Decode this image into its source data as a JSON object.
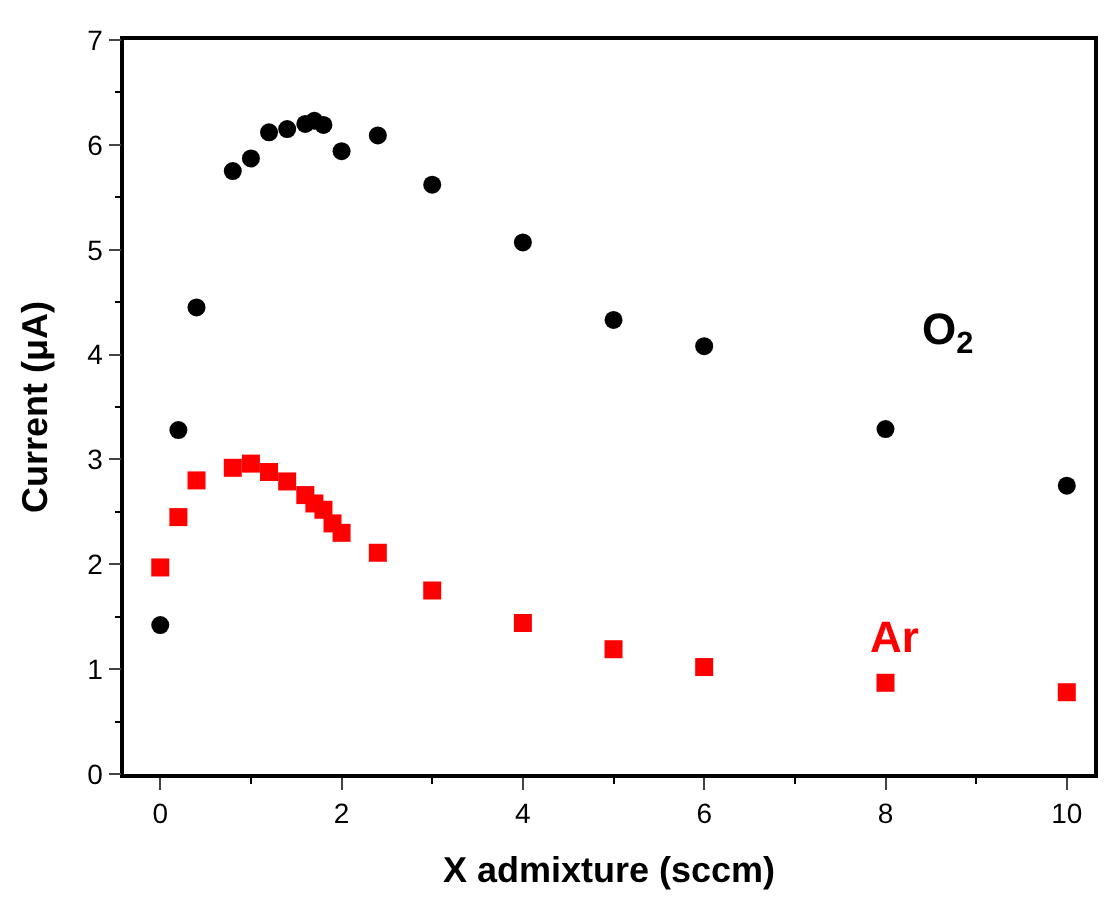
{
  "chart_data": {
    "type": "scatter",
    "xlabel": "X admixture (sccm)",
    "ylabel": "Current (μA)",
    "xlim": [
      -0.4,
      10.3
    ],
    "xticks": [
      0,
      2,
      4,
      6,
      8,
      10
    ],
    "ylim": [
      0,
      7
    ],
    "yticks": [
      0,
      1,
      2,
      3,
      4,
      5,
      6,
      7
    ],
    "legend": false,
    "series": [
      {
        "name": "O$_{2}$",
        "color": "#000000",
        "marker": "circle",
        "x": [
          0,
          0.2,
          0.4,
          0.8,
          1.0,
          1.2,
          1.4,
          1.6,
          1.7,
          1.8,
          2.0,
          2.4,
          3,
          4,
          5,
          6,
          8,
          10
        ],
        "values": [
          1.42,
          3.28,
          4.45,
          5.75,
          5.87,
          6.12,
          6.15,
          6.2,
          6.23,
          6.19,
          5.94,
          6.09,
          5.62,
          5.07,
          4.33,
          4.08,
          3.29,
          2.75
        ]
      },
      {
        "name": "Ar",
        "color": "#ff0000",
        "marker": "square",
        "x": [
          0,
          0.2,
          0.4,
          0.8,
          1.0,
          1.2,
          1.4,
          1.6,
          1.7,
          1.8,
          1.9,
          2.0,
          2.4,
          3,
          4,
          5,
          6,
          8,
          10
        ],
        "values": [
          1.97,
          2.45,
          2.8,
          2.92,
          2.96,
          2.88,
          2.79,
          2.66,
          2.58,
          2.52,
          2.39,
          2.3,
          2.11,
          1.75,
          1.44,
          1.19,
          1.02,
          0.87,
          0.78
        ]
      }
    ]
  }
}
